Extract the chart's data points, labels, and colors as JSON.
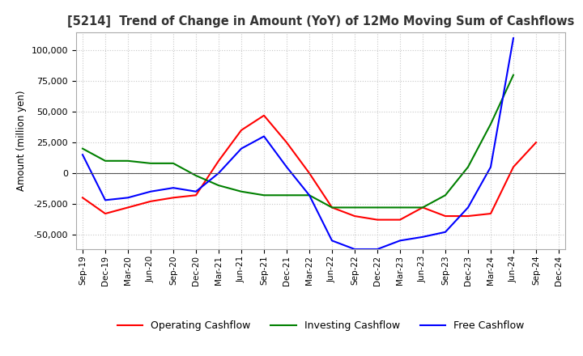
{
  "title": "[5214]  Trend of Change in Amount (YoY) of 12Mo Moving Sum of Cashflows",
  "ylabel": "Amount (million yen)",
  "ylim": [
    -62000,
    115000
  ],
  "yticks": [
    -50000,
    -25000,
    0,
    25000,
    50000,
    75000,
    100000
  ],
  "x_labels": [
    "Sep-19",
    "Dec-19",
    "Mar-20",
    "Jun-20",
    "Sep-20",
    "Dec-20",
    "Mar-21",
    "Jun-21",
    "Sep-21",
    "Dec-21",
    "Mar-22",
    "Jun-22",
    "Sep-22",
    "Dec-22",
    "Mar-23",
    "Jun-23",
    "Sep-23",
    "Dec-23",
    "Mar-24",
    "Jun-24",
    "Sep-24",
    "Dec-24"
  ],
  "operating": [
    -20000,
    -33000,
    -28000,
    -23000,
    -20000,
    -18000,
    10000,
    35000,
    47000,
    25000,
    0,
    -28000,
    -35000,
    -38000,
    -38000,
    -28000,
    -35000,
    -35000,
    -33000,
    5000,
    25000,
    null
  ],
  "investing": [
    20000,
    10000,
    10000,
    8000,
    8000,
    -2000,
    -10000,
    -15000,
    -18000,
    -18000,
    -18000,
    -28000,
    -28000,
    -28000,
    -28000,
    -28000,
    -18000,
    5000,
    40000,
    80000,
    null,
    null
  ],
  "free": [
    15000,
    -22000,
    -20000,
    -15000,
    -12000,
    -15000,
    0,
    20000,
    30000,
    5000,
    -18000,
    -55000,
    -62000,
    -62000,
    -55000,
    -52000,
    -48000,
    -28000,
    5000,
    110000,
    null,
    null
  ],
  "operating_color": "#ff0000",
  "investing_color": "#008000",
  "free_color": "#0000ff",
  "bg_color": "#ffffff",
  "grid_color": "#c8c8c8"
}
